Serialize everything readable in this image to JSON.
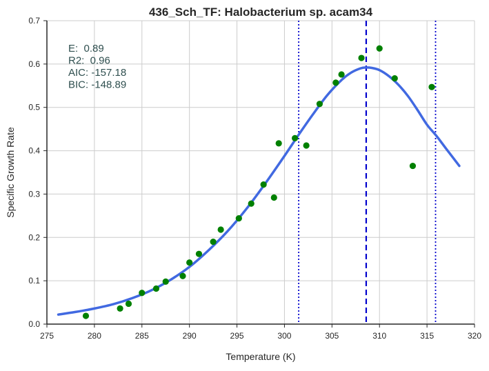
{
  "chart_data": {
    "type": "scatter",
    "title": "436_Sch_TF: Halobacterium sp. acam34",
    "xlabel": "Temperature (K)",
    "ylabel": "Specific Growth Rate",
    "xlim": [
      275,
      320
    ],
    "ylim": [
      0.0,
      0.7
    ],
    "x_ticks": [
      "275",
      "280",
      "285",
      "290",
      "295",
      "300",
      "305",
      "310",
      "315",
      "320"
    ],
    "y_ticks": [
      "0.0",
      "0.1",
      "0.2",
      "0.3",
      "0.4",
      "0.5",
      "0.6",
      "0.7"
    ],
    "grid": true,
    "annotations": [
      "E:  0.89",
      "R2:  0.96",
      "AIC: -157.18",
      "BIC: -148.89"
    ],
    "observed": {
      "color": "#008000",
      "points": [
        [
          279.1,
          0.019
        ],
        [
          282.7,
          0.036
        ],
        [
          283.6,
          0.047
        ],
        [
          285.0,
          0.072
        ],
        [
          286.5,
          0.082
        ],
        [
          287.5,
          0.098
        ],
        [
          289.3,
          0.111
        ],
        [
          290.0,
          0.142
        ],
        [
          291.0,
          0.162
        ],
        [
          292.5,
          0.19
        ],
        [
          293.3,
          0.218
        ],
        [
          295.2,
          0.244
        ],
        [
          296.5,
          0.278
        ],
        [
          297.8,
          0.322
        ],
        [
          298.9,
          0.292
        ],
        [
          299.4,
          0.417
        ],
        [
          301.1,
          0.429
        ],
        [
          302.3,
          0.412
        ],
        [
          303.7,
          0.508
        ],
        [
          305.4,
          0.557
        ],
        [
          306.0,
          0.576
        ],
        [
          308.1,
          0.614
        ],
        [
          310.0,
          0.636
        ],
        [
          311.6,
          0.567
        ],
        [
          313.5,
          0.365
        ],
        [
          315.5,
          0.547
        ]
      ]
    },
    "fitted_curve": {
      "color": "#4169E1",
      "points": [
        [
          276.2,
          0.022
        ],
        [
          278.0,
          0.028
        ],
        [
          280.0,
          0.036
        ],
        [
          282.0,
          0.046
        ],
        [
          284.0,
          0.06
        ],
        [
          286.0,
          0.078
        ],
        [
          288.0,
          0.102
        ],
        [
          290.0,
          0.132
        ],
        [
          292.0,
          0.17
        ],
        [
          294.0,
          0.214
        ],
        [
          296.0,
          0.266
        ],
        [
          298.0,
          0.325
        ],
        [
          300.0,
          0.388
        ],
        [
          301.5,
          0.437
        ],
        [
          303.0,
          0.484
        ],
        [
          304.5,
          0.528
        ],
        [
          306.0,
          0.563
        ],
        [
          307.0,
          0.58
        ],
        [
          308.0,
          0.59
        ],
        [
          308.6,
          0.592
        ],
        [
          309.2,
          0.591
        ],
        [
          310.0,
          0.586
        ],
        [
          311.0,
          0.572
        ],
        [
          312.0,
          0.552
        ],
        [
          313.0,
          0.526
        ],
        [
          314.0,
          0.494
        ],
        [
          315.0,
          0.46
        ],
        [
          316.0,
          0.434
        ],
        [
          317.0,
          0.405
        ],
        [
          318.4,
          0.365
        ]
      ]
    },
    "vertical_lines": [
      {
        "x": 301.5,
        "style": "dotted",
        "color": "#0000CD"
      },
      {
        "x": 308.6,
        "style": "dashed",
        "color": "#0000CD"
      },
      {
        "x": 315.9,
        "style": "dotted",
        "color": "#0000CD"
      }
    ]
  }
}
